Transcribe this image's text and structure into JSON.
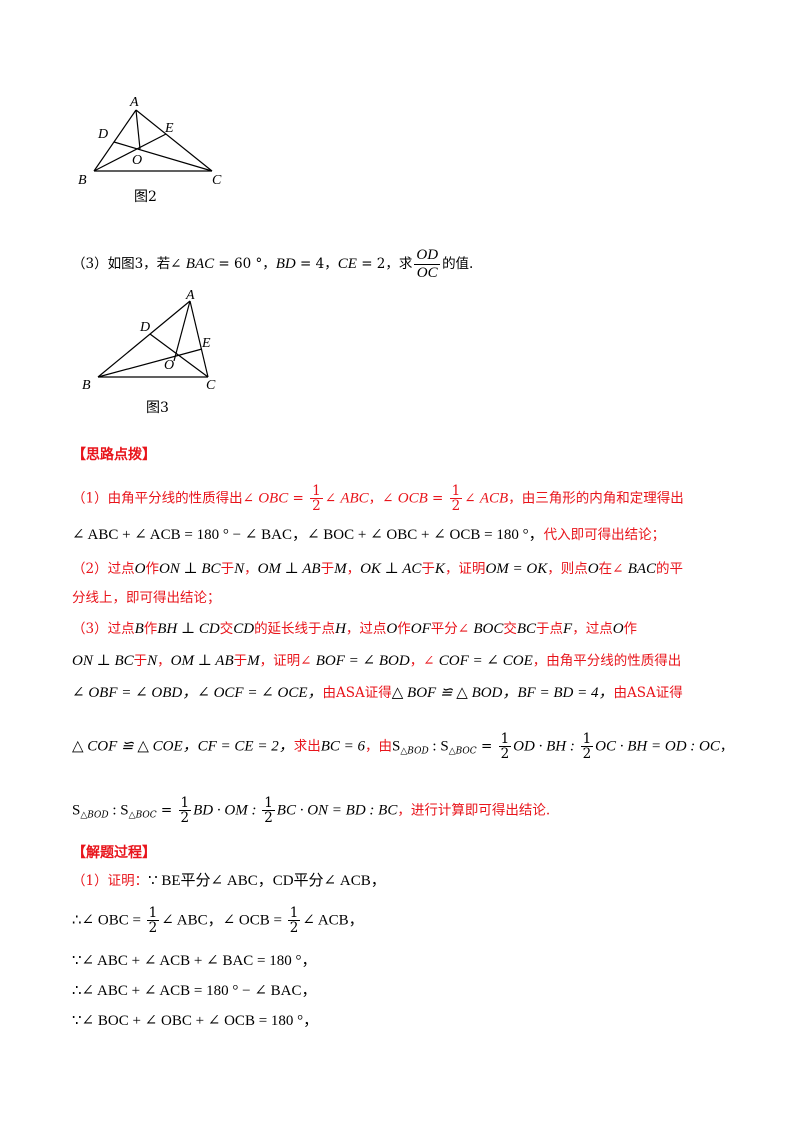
{
  "figure2": {
    "caption": "图2",
    "labels": {
      "A": "A",
      "B": "B",
      "C": "C",
      "D": "D",
      "E": "E",
      "O": "O"
    }
  },
  "question3": {
    "prefix": "（3）如图3，若∠ ",
    "bac": "BAC",
    "eq60": " = 60 °，",
    "bd": "BD",
    "eq4": " = 4，",
    "ce": "CE",
    "eq2": " = 2，求",
    "frac_num": "OD",
    "frac_den": "OC",
    "suffix": "的值."
  },
  "figure3": {
    "caption": "图3",
    "labels": {
      "A": "A",
      "B": "B",
      "C": "C",
      "D": "D",
      "E": "E",
      "O": "O"
    }
  },
  "hint_heading": "【思路点拨】",
  "hint": {
    "l1_a": "（1）由角平分线的性质得出∠ ",
    "l1_b": "OBC",
    "l1_c": " = ",
    "half_num": "1",
    "half_den": "2",
    "l1_d": "∠ ",
    "l1_e": "ABC",
    "l1_f": "，∠ ",
    "l1_g": "OCB",
    "l1_h": " = ",
    "l1_i": "∠ ",
    "l1_j": "ACB",
    "l1_k": "，由三角形的内角和定理得出",
    "l2": "∠ ABC + ∠ ACB = 180 ° − ∠ BAC，∠ BOC + ∠ OBC + ∠ OCB = 180 °，",
    "l2_tail": "代入即可得出结论；",
    "l3_a": "（2）过点",
    "l3_b": "O",
    "l3_c": "作",
    "l3_d": "ON ⊥ BC",
    "l3_e": "于",
    "l3_f": "N",
    "l3_g": "，",
    "l3_h": "OM ⊥ AB",
    "l3_i": "于",
    "l3_j": "M",
    "l3_k": "，",
    "l3_l": "OK ⊥ AC",
    "l3_m": "于",
    "l3_n": "K",
    "l3_o": "，证明",
    "l3_p": "OM = OK",
    "l3_q": "，则点",
    "l3_r": "O",
    "l3_s": "在∠ ",
    "l3_t": "BAC",
    "l3_u": "的平",
    "l4": "分线上，即可得出结论；",
    "l5_a": "（3）过点",
    "l5_b": "B",
    "l5_c": "作",
    "l5_d": "BH ⊥ CD",
    "l5_e": "交",
    "l5_f": "CD",
    "l5_g": "的延长线于点",
    "l5_h": "H",
    "l5_i": "，过点",
    "l5_j": "O",
    "l5_k": "作",
    "l5_l": "OF",
    "l5_m": "平分∠ ",
    "l5_n": "BOC",
    "l5_o": "交",
    "l5_p": "BC",
    "l5_q": "于点",
    "l5_r": "F",
    "l5_s": "，过点",
    "l5_t": "O",
    "l5_u": "作",
    "l6_a": "ON ⊥ BC",
    "l6_b": "于",
    "l6_c": "N",
    "l6_d": "，",
    "l6_e": "OM ⊥ AB",
    "l6_f": "于",
    "l6_g": "M",
    "l6_h": "，证明∠ ",
    "l6_i": "BOF = ∠ BOD",
    "l6_j": "，∠ ",
    "l6_k": "COF = ∠ COE",
    "l6_l": "，由角平分线的性质得出",
    "l7_a": "∠ OBF = ∠ OBD，∠ OCF = ∠ OCE，",
    "l7_b": "由ASA证得",
    "l7_c": "△ BOF ≌ △ BOD，BF = BD = 4，",
    "l7_d": "由ASA证得",
    "l8_a": "△ COF ≌ △ COE，CF = CE = 2，",
    "l8_b": "求出",
    "l8_c": "BC = 6",
    "l8_d": "，由",
    "l8_s": "S",
    "l8_sub1": "△BOD",
    "l8_colon": " : S",
    "l8_sub2": "△BOC",
    "l8_eq": " = ",
    "l8_t1": "OD · BH : ",
    "l8_t2": "OC · BH = OD : OC",
    "l8_end": "，",
    "l9_s": "S",
    "l9_sub1": "△BOD",
    "l9_colon": " : S",
    "l9_sub2": "△BOC",
    "l9_eq": " = ",
    "l9_t1": "BD · OM : ",
    "l9_t2": "BC · ON = BD : BC",
    "l9_end": "，进行计算即可得出结论."
  },
  "solution_heading": "【解题过程】",
  "solution": {
    "s1_a": "（1）证明：",
    "s1_b": "∵ BE平分∠ ABC，CD平分∠ ACB，",
    "s2_a": "∴∠ OBC = ",
    "s2_b": "∠ ABC，∠ OCB = ",
    "s2_c": "∠ ACB，",
    "s3": "∵∠ ABC + ∠ ACB + ∠ BAC = 180 °，",
    "s4": "∴∠ ABC + ∠ ACB = 180 ° − ∠ BAC，",
    "s5": "∵∠ BOC + ∠ OBC + ∠ OCB = 180 °，"
  }
}
